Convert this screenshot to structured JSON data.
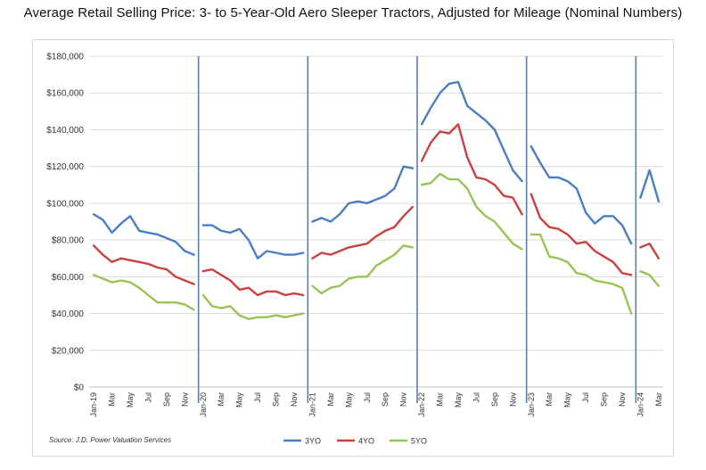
{
  "title": "Average Retail Selling Price: 3- to 5-Year-Old Aero Sleeper Tractors, Adjusted for Mileage (Nominal Numbers)",
  "source": "Source: J.D. Power Valuation Services",
  "colors": {
    "3YO": "#4a7ec3",
    "4YO": "#c9423f",
    "5YO": "#98c454",
    "divider": "#5a7fa8",
    "grid": "#d9d9d9"
  },
  "chart_data": {
    "type": "line",
    "title": "Average Retail Selling Price: 3- to 5-Year-Old Aero Sleeper Tractors, Adjusted for Mileage (Nominal Numbers)",
    "xlabel": "",
    "ylabel": "",
    "ylim": [
      0,
      180000
    ],
    "yticks": [
      "$0",
      "$20,000",
      "$40,000",
      "$60,000",
      "$80,000",
      "$100,000",
      "$120,000",
      "$140,000",
      "$160,000",
      "$180,000"
    ],
    "x": [
      "Jan-19",
      "Feb-19",
      "Mar-19",
      "Apr-19",
      "May-19",
      "Jun-19",
      "Jul-19",
      "Aug-19",
      "Sep-19",
      "Oct-19",
      "Nov-19",
      "Dec-19",
      "Jan-20",
      "Feb-20",
      "Mar-20",
      "Apr-20",
      "May-20",
      "Jun-20",
      "Jul-20",
      "Aug-20",
      "Sep-20",
      "Oct-20",
      "Nov-20",
      "Dec-20",
      "Jan-21",
      "Feb-21",
      "Mar-21",
      "Apr-21",
      "May-21",
      "Jun-21",
      "Jul-21",
      "Aug-21",
      "Sep-21",
      "Oct-21",
      "Nov-21",
      "Dec-21",
      "Jan-22",
      "Feb-22",
      "Mar-22",
      "Apr-22",
      "May-22",
      "Jun-22",
      "Jul-22",
      "Aug-22",
      "Sep-22",
      "Oct-22",
      "Nov-22",
      "Dec-22",
      "Jan-23",
      "Feb-23",
      "Mar-23",
      "Apr-23",
      "May-23",
      "Jun-23",
      "Jul-23",
      "Aug-23",
      "Sep-23",
      "Oct-23",
      "Nov-23",
      "Dec-23",
      "Jan-24",
      "Feb-24",
      "Mar-24"
    ],
    "xticks": [
      "Jan-19",
      "Mar",
      "May",
      "Jul",
      "Sep",
      "Nov",
      "Jan-20",
      "Mar",
      "May",
      "Jul",
      "Sep",
      "Nov",
      "Jan-21",
      "Mar",
      "May",
      "Jul",
      "Sep",
      "Nov",
      "Jan-22",
      "Mar",
      "May",
      "Jul",
      "Sep",
      "Nov",
      "Jan-23",
      "Mar",
      "May",
      "Jul",
      "Sep",
      "Nov",
      "Jan-24",
      "Mar"
    ],
    "year_dividers_after_index": [
      11,
      23,
      35,
      47,
      59
    ],
    "legend": {
      "placement": "bottom",
      "entries": [
        "3YO",
        "4YO",
        "5YO"
      ]
    },
    "series": [
      {
        "name": "3YO",
        "segments": [
          [
            94000,
            91000,
            84000,
            89000,
            93000,
            85000,
            84000,
            83000,
            81000,
            79000,
            74000,
            72000
          ],
          [
            88000,
            88000,
            85000,
            84000,
            86000,
            80000,
            70000,
            74000,
            73000,
            72000,
            72000,
            73000
          ],
          [
            90000,
            92000,
            90000,
            94000,
            100000,
            101000,
            100000,
            102000,
            104000,
            108000,
            120000,
            119000
          ],
          [
            143000,
            152000,
            160000,
            165000,
            166000,
            153000,
            149000,
            145000,
            140000,
            129000,
            118000,
            112000
          ],
          [
            131000,
            122000,
            114000,
            114000,
            112000,
            108000,
            95000,
            89000,
            93000,
            93000,
            88000,
            78000
          ],
          [
            103000,
            118000,
            101000
          ]
        ]
      },
      {
        "name": "4YO",
        "segments": [
          [
            77000,
            72000,
            68000,
            70000,
            69000,
            68000,
            67000,
            65000,
            64000,
            60000,
            58000,
            56000
          ],
          [
            63000,
            64000,
            61000,
            58000,
            53000,
            54000,
            50000,
            52000,
            52000,
            50000,
            51000,
            50000
          ],
          [
            70000,
            73000,
            72000,
            74000,
            76000,
            77000,
            78000,
            82000,
            85000,
            87000,
            93000,
            98000
          ],
          [
            123000,
            133000,
            139000,
            138000,
            143000,
            125000,
            114000,
            113000,
            110000,
            104000,
            103000,
            94000
          ],
          [
            105000,
            92000,
            87000,
            86000,
            83000,
            78000,
            79000,
            74000,
            71000,
            68000,
            62000,
            61000
          ],
          [
            76000,
            78000,
            70000
          ]
        ]
      },
      {
        "name": "5YO",
        "segments": [
          [
            61000,
            59000,
            57000,
            58000,
            57000,
            54000,
            50000,
            46000,
            46000,
            46000,
            45000,
            42000
          ],
          [
            50000,
            44000,
            43000,
            44000,
            39000,
            37000,
            38000,
            38000,
            39000,
            38000,
            39000,
            40000
          ],
          [
            55000,
            51000,
            54000,
            55000,
            59000,
            60000,
            60000,
            66000,
            69000,
            72000,
            77000,
            76000
          ],
          [
            110000,
            111000,
            116000,
            113000,
            113000,
            108000,
            98000,
            93000,
            90000,
            84000,
            78000,
            75000
          ],
          [
            83000,
            83000,
            71000,
            70000,
            68000,
            62000,
            61000,
            58000,
            57000,
            56000,
            54000,
            40000
          ],
          [
            63000,
            61000,
            55000
          ]
        ]
      }
    ]
  }
}
